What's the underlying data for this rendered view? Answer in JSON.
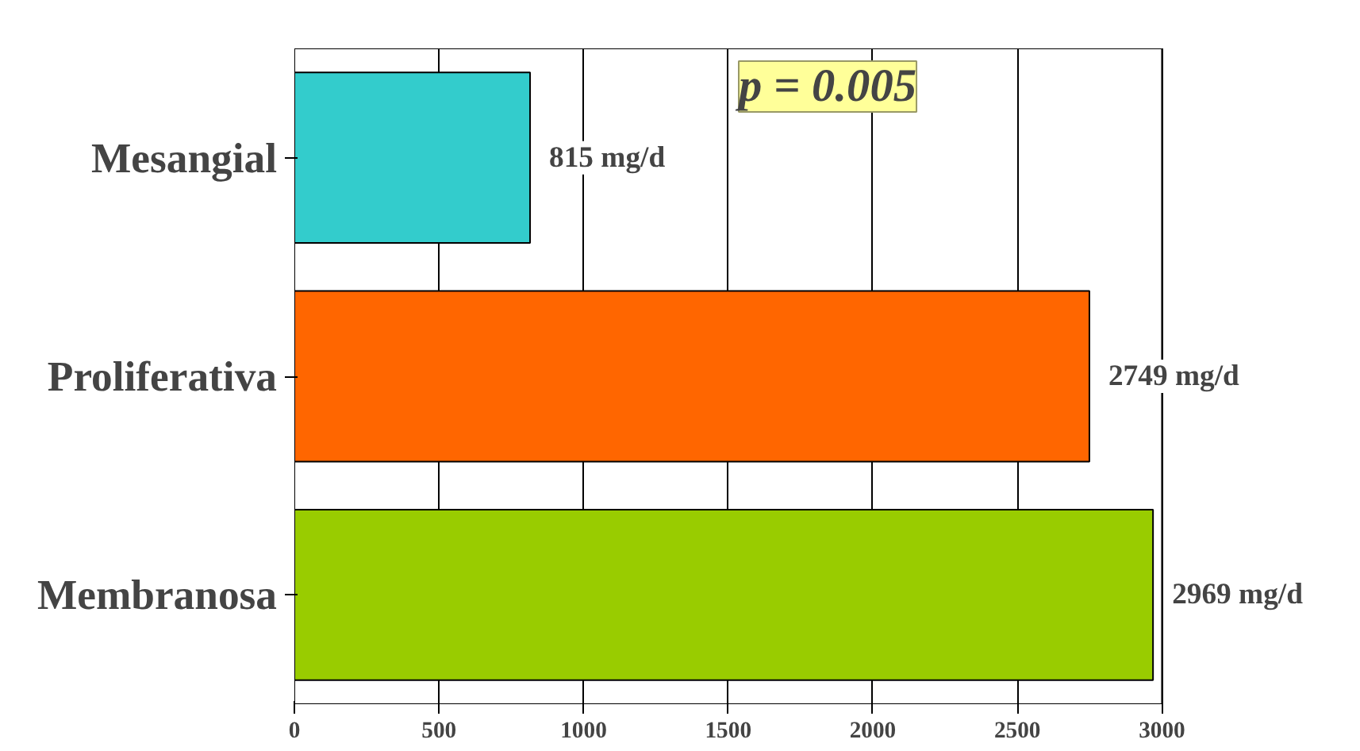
{
  "chart_data": {
    "type": "bar",
    "orientation": "horizontal",
    "categories": [
      "Mesangial",
      "Proliferativa",
      "Membranosa"
    ],
    "values": [
      815,
      2749,
      2969
    ],
    "colors": [
      "#33cccc",
      "#ff6600",
      "#99cc00"
    ],
    "value_labels": [
      "815 mg/d",
      "2749 mg/d",
      "2969 mg/d"
    ],
    "xlim": [
      0,
      3000
    ],
    "xticks": [
      0,
      500,
      1000,
      1500,
      2000,
      2500,
      3000
    ],
    "grid": "x",
    "annotations": [
      "p = 0.005"
    ]
  }
}
